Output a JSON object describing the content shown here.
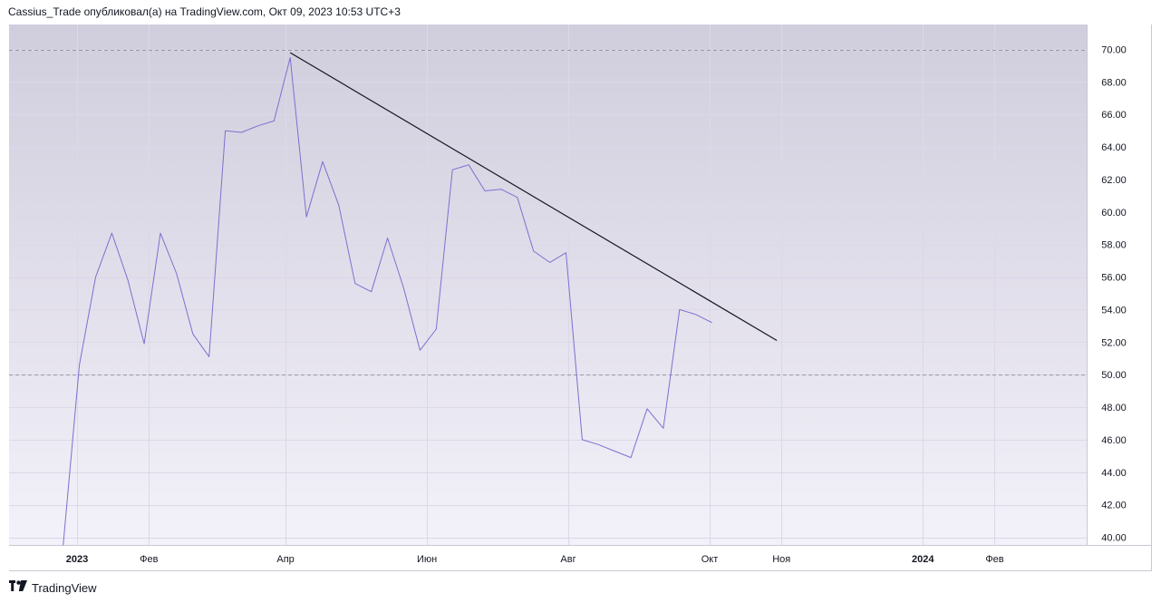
{
  "header": {
    "publication_line": "Cassius_Trade опубликовал(а) на TradingView.com, Окт 09, 2023 10:53 UTC+3"
  },
  "footer": {
    "brand": "TradingView",
    "logo_icon": "tradingview-logo-icon"
  },
  "colors": {
    "line": "#7e6fcf",
    "trendline": "#131722",
    "bg_top": "#d0cddd",
    "bg_bottom": "#f3f1f9",
    "grid": "#dcd8e8",
    "hline": "#9a98a6"
  },
  "chart_data": {
    "type": "line",
    "ylim": [
      39.5,
      71.5
    ],
    "y_ticks": [
      "40.00",
      "42.00",
      "44.00",
      "46.00",
      "48.00",
      "50.00",
      "52.00",
      "54.00",
      "56.00",
      "58.00",
      "60.00",
      "62.00",
      "64.00",
      "66.00",
      "68.00",
      "70.00"
    ],
    "x_ticks": [
      {
        "label": "2023",
        "date": "2023-01-01",
        "bold": true
      },
      {
        "label": "Фев",
        "date": "2023-02-01",
        "bold": false
      },
      {
        "label": "Апр",
        "date": "2023-04-01",
        "bold": false
      },
      {
        "label": "Июн",
        "date": "2023-06-01",
        "bold": false
      },
      {
        "label": "Авг",
        "date": "2023-08-01",
        "bold": false
      },
      {
        "label": "Окт",
        "date": "2023-10-01",
        "bold": false
      },
      {
        "label": "Ноя",
        "date": "2023-11-01",
        "bold": false
      },
      {
        "label": "2024",
        "date": "2024-01-01",
        "bold": true
      },
      {
        "label": "Фев",
        "date": "2024-02-01",
        "bold": false
      }
    ],
    "series": [
      {
        "points": [
          [
            "2022-12-26",
            39.5
          ],
          [
            "2023-01-02",
            50.6
          ],
          [
            "2023-01-09",
            56.0
          ],
          [
            "2023-01-16",
            58.7
          ],
          [
            "2023-01-23",
            55.8
          ],
          [
            "2023-01-30",
            51.9
          ],
          [
            "2023-02-06",
            58.7
          ],
          [
            "2023-02-13",
            56.2
          ],
          [
            "2023-02-20",
            52.5
          ],
          [
            "2023-02-27",
            51.1
          ],
          [
            "2023-03-06",
            65.0
          ],
          [
            "2023-03-13",
            64.9
          ],
          [
            "2023-03-20",
            65.3
          ],
          [
            "2023-03-27",
            65.6
          ],
          [
            "2023-04-03",
            69.5
          ],
          [
            "2023-04-10",
            59.7
          ],
          [
            "2023-04-17",
            63.1
          ],
          [
            "2023-04-24",
            60.4
          ],
          [
            "2023-05-01",
            55.6
          ],
          [
            "2023-05-08",
            55.1
          ],
          [
            "2023-05-15",
            58.4
          ],
          [
            "2023-05-22",
            55.3
          ],
          [
            "2023-05-29",
            51.5
          ],
          [
            "2023-06-05",
            52.8
          ],
          [
            "2023-06-12",
            62.6
          ],
          [
            "2023-06-19",
            62.9
          ],
          [
            "2023-06-26",
            61.3
          ],
          [
            "2023-07-03",
            61.4
          ],
          [
            "2023-07-10",
            60.9
          ],
          [
            "2023-07-17",
            57.6
          ],
          [
            "2023-07-24",
            56.9
          ],
          [
            "2023-07-31",
            57.5
          ],
          [
            "2023-08-07",
            46.0
          ],
          [
            "2023-08-14",
            45.7
          ],
          [
            "2023-08-21",
            45.3
          ],
          [
            "2023-08-28",
            44.9
          ],
          [
            "2023-09-04",
            47.9
          ],
          [
            "2023-09-11",
            46.7
          ],
          [
            "2023-09-18",
            54.0
          ],
          [
            "2023-09-25",
            53.7
          ],
          [
            "2023-10-02",
            53.2
          ]
        ]
      }
    ],
    "horizontal_lines": [
      70,
      50
    ],
    "trendline": {
      "start": [
        "2023-04-03",
        69.8
      ],
      "end": [
        "2023-10-30",
        52.1
      ]
    },
    "grid": true
  }
}
